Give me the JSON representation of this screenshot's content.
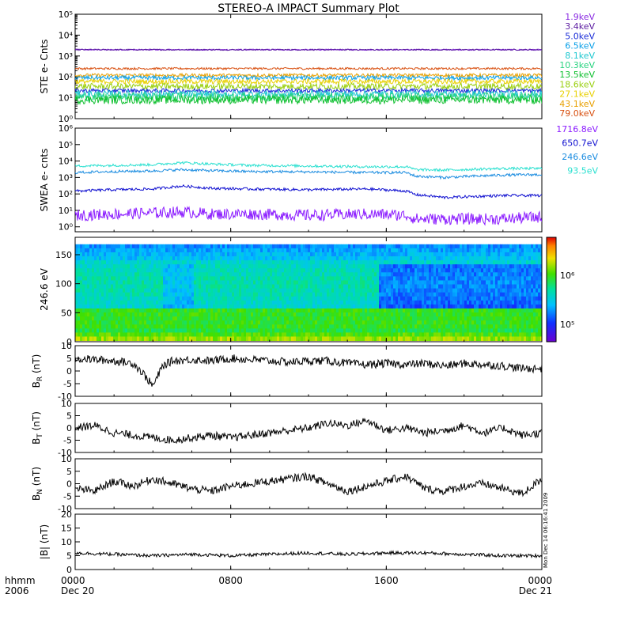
{
  "title": "STEREO-A IMPACT Summary Plot",
  "colors": {
    "ste": [
      "#8a2be2",
      "#5a1aa0",
      "#1a2cd8",
      "#0aa0e8",
      "#1ec8d0",
      "#2ad480",
      "#10c030",
      "#9ad010",
      "#e8d000",
      "#e8a000",
      "#d85010",
      "#c01010"
    ],
    "swea": [
      "#8a1aff",
      "#1010d0",
      "#1a8ce0",
      "#2ae0d0"
    ]
  },
  "chart_data": [
    {
      "type": "line",
      "name": "ste-panel",
      "ylabel": "STE e- Cnts",
      "yscale": "log",
      "ylim": [
        1,
        100000
      ],
      "tick_labels": [
        "10⁰",
        "10¹",
        "10²",
        "10³",
        "10⁴",
        "10⁵"
      ],
      "legend": [
        "1.9keV",
        "3.4keV",
        "5.0keV",
        "6.5keV",
        "8.1keV",
        "10.3keV",
        "13.5keV",
        "18.6keV",
        "27.1keV",
        "43.1keV",
        "79.0keV"
      ],
      "series": [
        {
          "name": "1.9keV",
          "level": 2000,
          "noise": 0.03
        },
        {
          "name": "3.4keV",
          "level": 2000,
          "noise": 0.03
        },
        {
          "name": "79.0keV",
          "level": 250,
          "noise": 0.05
        },
        {
          "name": "43.1keV",
          "level": 120,
          "noise": 0.08
        },
        {
          "name": "6.5keV",
          "level": 90,
          "noise": 0.1
        },
        {
          "name": "27.1keV",
          "level": 60,
          "noise": 0.12
        },
        {
          "name": "18.6keV",
          "level": 35,
          "noise": 0.15
        },
        {
          "name": "5.0keV",
          "level": 22,
          "noise": 0.1
        },
        {
          "name": "8.1keV",
          "level": 15,
          "noise": 0.18
        },
        {
          "name": "10.3keV",
          "level": 11,
          "noise": 0.2
        },
        {
          "name": "13.5keV",
          "level": 8,
          "noise": 0.2
        }
      ]
    },
    {
      "type": "line",
      "name": "swea-panel",
      "ylabel": "SWEA e- cnts",
      "yscale": "log",
      "ylim": [
        0.5,
        1000000
      ],
      "tick_labels": [
        "10⁰",
        "10¹",
        "10²",
        "10³",
        "10⁴",
        "10⁵",
        "10⁶"
      ],
      "legend": [
        "1716.8eV",
        "650.7eV",
        "246.6eV",
        "93.5eV"
      ],
      "series": [
        {
          "name": "93.5eV",
          "x": [
            0,
            2,
            4,
            5.5,
            7,
            9,
            12,
            15,
            17,
            17.5,
            19,
            22,
            24
          ],
          "y": [
            5000,
            5500,
            6000,
            8000,
            6500,
            5500,
            5000,
            4500,
            4500,
            3000,
            2800,
            3500,
            3500
          ]
        },
        {
          "name": "246.6eV",
          "x": [
            0,
            2,
            4,
            5.5,
            7,
            9,
            12,
            15,
            17,
            17.5,
            19,
            22,
            24
          ],
          "y": [
            2000,
            2300,
            2500,
            3000,
            2600,
            2300,
            2200,
            2000,
            2000,
            1200,
            1000,
            1400,
            1500
          ]
        },
        {
          "name": "650.7eV",
          "x": [
            0,
            2,
            4,
            5.5,
            7,
            9,
            12,
            15,
            17,
            17.5,
            19,
            22,
            24
          ],
          "y": [
            150,
            180,
            200,
            300,
            220,
            200,
            180,
            200,
            150,
            90,
            60,
            80,
            80
          ]
        },
        {
          "name": "1716.8eV",
          "x": [
            0,
            2,
            4,
            5.5,
            7,
            9,
            12,
            15,
            17,
            17.5,
            19,
            22,
            24
          ],
          "y": [
            5,
            6,
            7,
            8,
            6,
            6,
            5,
            6,
            5,
            3,
            3,
            3,
            4
          ]
        }
      ]
    },
    {
      "type": "heatmap",
      "name": "pitch-angle-panel",
      "ylabel": "246.6 eV",
      "ylim": [
        0,
        180
      ],
      "yticks": [
        0,
        50,
        100,
        150
      ],
      "colorbar_ticks": [
        "10⁶",
        "10⁵"
      ]
    },
    {
      "type": "line",
      "name": "br-panel",
      "ylabel_main": "B",
      "ylabel_sub": "R",
      "ylabel_unit": " (nT)",
      "ylim": [
        -10,
        10
      ],
      "yticks": [
        -10,
        -5,
        0,
        5,
        10
      ],
      "x": [
        0,
        1,
        2,
        3,
        3.5,
        4,
        4.5,
        5,
        6,
        7,
        8,
        9,
        10,
        11,
        12,
        13,
        14,
        15,
        16,
        17,
        18,
        19,
        20,
        21,
        22,
        23,
        24
      ],
      "y": [
        5,
        4.5,
        4,
        3,
        -1,
        -6,
        2,
        4,
        4.5,
        4,
        5,
        4.5,
        4,
        3.5,
        4,
        4,
        3,
        2.5,
        3,
        2.5,
        3,
        2,
        3,
        2.5,
        2,
        1,
        1
      ]
    },
    {
      "type": "line",
      "name": "bt-panel",
      "ylabel_main": "B",
      "ylabel_sub": "T",
      "ylabel_unit": " (nT)",
      "ylim": [
        -10,
        10
      ],
      "yticks": [
        -10,
        -5,
        0,
        5,
        10
      ],
      "x": [
        0,
        1,
        2,
        3,
        4,
        5,
        6,
        7,
        8,
        9,
        10,
        11,
        12,
        13,
        14,
        15,
        16,
        17,
        18,
        19,
        20,
        21,
        22,
        23,
        24
      ],
      "y": [
        0,
        1,
        -2,
        -3,
        -4,
        -5,
        -4,
        -3,
        -4,
        -3,
        -2,
        -1,
        0,
        2,
        1,
        3,
        -1,
        0,
        -2,
        -1,
        1,
        -2,
        0,
        -3,
        -2
      ]
    },
    {
      "type": "line",
      "name": "bn-panel",
      "ylabel_main": "B",
      "ylabel_sub": "N",
      "ylabel_unit": " (nT)",
      "ylim": [
        -10,
        10
      ],
      "yticks": [
        -10,
        -5,
        0,
        5,
        10
      ],
      "x": [
        0,
        1,
        2,
        3,
        4,
        5,
        6,
        7,
        8,
        9,
        10,
        11,
        12,
        13,
        14,
        15,
        16,
        17,
        18,
        19,
        20,
        21,
        22,
        23,
        24
      ],
      "y": [
        -2,
        -3,
        1,
        -1,
        2,
        0,
        -2,
        -3,
        -1,
        0,
        1,
        2,
        3,
        0,
        -3,
        -1,
        1,
        3,
        -2,
        -3,
        -1,
        0,
        -2,
        -4,
        2
      ]
    },
    {
      "type": "line",
      "name": "bmag-panel",
      "ylabel": "|B| (nT)",
      "ylim": [
        0,
        20
      ],
      "yticks": [
        0,
        5,
        10,
        15,
        20
      ],
      "x": [
        0,
        2,
        4,
        6,
        8,
        10,
        12,
        14,
        16,
        18,
        20,
        22,
        24
      ],
      "y": [
        6,
        5.5,
        5,
        5.5,
        5,
        5.5,
        6,
        5.5,
        6,
        6,
        5.5,
        5,
        5
      ]
    }
  ],
  "xaxis": {
    "label_top": "hhmm",
    "label_bottom": "2006",
    "ticks": [
      {
        "hour": 0,
        "label": "0000",
        "date": "Dec 20"
      },
      {
        "hour": 8,
        "label": "0800",
        "date": ""
      },
      {
        "hour": 16,
        "label": "1600",
        "date": ""
      },
      {
        "hour": 24,
        "label": "0000",
        "date": "Dec 21"
      }
    ]
  },
  "stamp": "Mon Dec 14 06:16:41 2009"
}
